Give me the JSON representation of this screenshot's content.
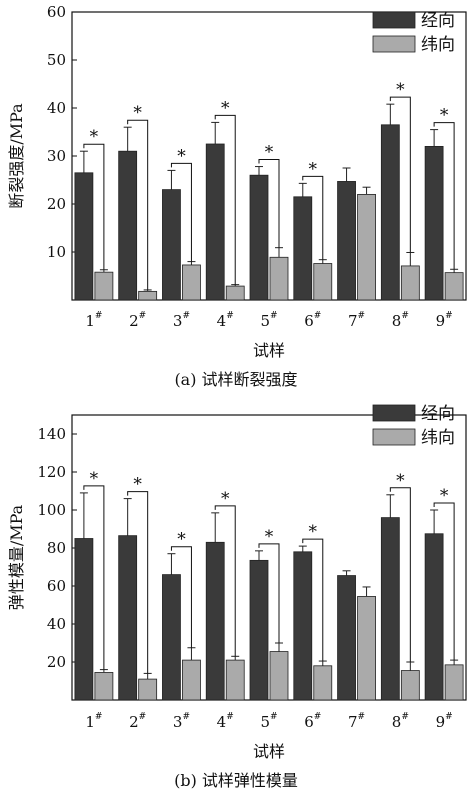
{
  "chart_data": [
    {
      "type": "bar",
      "panel_caption": "(a)  试样断裂强度",
      "xlabel": "试样",
      "ylabel": "断裂强度/MPa",
      "ylim": [
        0,
        60
      ],
      "yticks": [
        10,
        20,
        30,
        40,
        50,
        60
      ],
      "categories": [
        "1",
        "2",
        "3",
        "4",
        "5",
        "6",
        "7",
        "8",
        "9"
      ],
      "category_superscript": "#",
      "legend_position": "top-right",
      "series": [
        {
          "name": "经向",
          "color": "#3a3a3a",
          "values": [
            26.5,
            31,
            23,
            32.5,
            26,
            21.5,
            24.7,
            36.5,
            32
          ],
          "errors": [
            4.5,
            5,
            4,
            4.5,
            1.8,
            2.8,
            2.8,
            4.3,
            3.5
          ]
        },
        {
          "name": "纬向",
          "color": "#aaaaaa",
          "values": [
            5.8,
            1.8,
            7.3,
            2.9,
            8.9,
            7.6,
            22,
            7.1,
            5.7
          ],
          "errors": [
            0.5,
            0.3,
            0.7,
            0.3,
            2,
            0.8,
            1.5,
            2.8,
            0.7
          ]
        }
      ],
      "significance": [
        "*",
        "*",
        "*",
        "*",
        "*",
        "*",
        "",
        "*",
        "*"
      ]
    },
    {
      "type": "bar",
      "panel_caption": "(b)  试样弹性模量",
      "xlabel": "试样",
      "ylabel": "弹性模量/MPa",
      "ylim": [
        0,
        150
      ],
      "yticks": [
        20,
        40,
        60,
        80,
        100,
        120,
        140
      ],
      "categories": [
        "1",
        "2",
        "3",
        "4",
        "5",
        "6",
        "7",
        "8",
        "9"
      ],
      "category_superscript": "#",
      "legend_position": "top-right",
      "series": [
        {
          "name": "经向",
          "color": "#3a3a3a",
          "values": [
            85,
            86.5,
            66,
            83,
            73.5,
            78,
            65.5,
            96,
            87.5
          ],
          "errors": [
            24,
            19.5,
            11,
            15.5,
            5,
            3,
            2.5,
            12,
            12.5
          ]
        },
        {
          "name": "纬向",
          "color": "#aaaaaa",
          "values": [
            14.5,
            11,
            21,
            21,
            25.5,
            18,
            54.5,
            15.5,
            18.5
          ],
          "errors": [
            1.5,
            3,
            6.5,
            2,
            4.5,
            2.5,
            5,
            4.5,
            2.5
          ]
        }
      ],
      "significance": [
        "*",
        "*",
        "*",
        "*",
        "*",
        "*",
        "",
        "*",
        "*"
      ]
    }
  ]
}
